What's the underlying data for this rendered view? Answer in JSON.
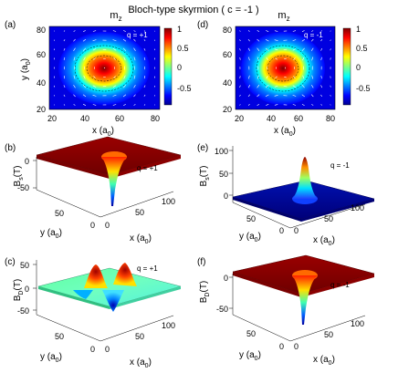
{
  "title": "Bloch-type skyrmion ( c = -1 )",
  "colors": {
    "jet": [
      "#00008f",
      "#0000ff",
      "#0080ff",
      "#00ffff",
      "#80ff80",
      "#ffff00",
      "#ff8000",
      "#ff0000",
      "#800000"
    ],
    "background": "#ffffff",
    "arrow": "#ffffff",
    "contour": "#000000",
    "mesh_edge": "#222222"
  },
  "panels": {
    "a": {
      "label": "(a)",
      "title_html": "m",
      "title_sub": "z",
      "q_text": "q = +1",
      "xlabel": "x (a",
      "xlabel_sub": "0",
      "xlabel_end": ")",
      "ylabel": "y (a",
      "ylabel_sub": "0",
      "ylabel_end": ")",
      "xticks": [
        "20",
        "40",
        "60",
        "80"
      ],
      "yticks": [
        "80",
        "60",
        "40",
        "20"
      ]
    },
    "d": {
      "label": "(d)",
      "title_html": "m",
      "title_sub": "z",
      "q_text": "q = -1",
      "xlabel": "x (a",
      "xlabel_sub": "0",
      "xlabel_end": ")",
      "xticks": [
        "20",
        "40",
        "60",
        "80"
      ],
      "yticks": [
        "80",
        "60",
        "40",
        "20"
      ]
    },
    "colorbar": {
      "ticks": [
        "1",
        "0.5",
        "0",
        "-0.5"
      ]
    },
    "b": {
      "label": "(b)",
      "q_text": "q = +1",
      "zlabel": "B",
      "zlabel_sub": "s",
      "zlabel_end": "(T)",
      "zticks": [
        "0",
        "-50"
      ],
      "yticks": [
        "50",
        "0"
      ],
      "xticks": [
        "0",
        "50",
        "100"
      ],
      "ylabel": "y (a",
      "xlabel": "x (a",
      "sub0": "0",
      "close": ")"
    },
    "e": {
      "label": "(e)",
      "q_text": "q = -1",
      "zlabel": "B",
      "zlabel_sub": "s",
      "zlabel_end": "(T)",
      "zticks": [
        "100",
        "50",
        "0"
      ],
      "yticks": [
        "50",
        "0"
      ],
      "xticks": [
        "0",
        "50",
        "100"
      ],
      "ylabel": "y (a",
      "xlabel": "x (a",
      "sub0": "0",
      "close": ")"
    },
    "c": {
      "label": "(c)",
      "q_text": "q = +1",
      "zlabel": "B",
      "zlabel_sub": "D",
      "zlabel_end": "(T)",
      "zticks": [
        "50",
        "0",
        "-50"
      ],
      "yticks": [
        "50",
        "0"
      ],
      "xticks": [
        "0",
        "50",
        "100"
      ],
      "ylabel": "y (a",
      "xlabel": "x (a",
      "sub0": "0",
      "close": ")"
    },
    "f": {
      "label": "(f)",
      "q_text": "q = -1",
      "zlabel": "B",
      "zlabel_sub": "D",
      "zlabel_end": "(T)",
      "zticks": [
        "0",
        "-50"
      ],
      "yticks": [
        "50",
        "0"
      ],
      "xticks": [
        "0",
        "50",
        "100"
      ],
      "ylabel": "y (a",
      "xlabel": "x (a",
      "sub0": "0",
      "close": ")"
    }
  }
}
